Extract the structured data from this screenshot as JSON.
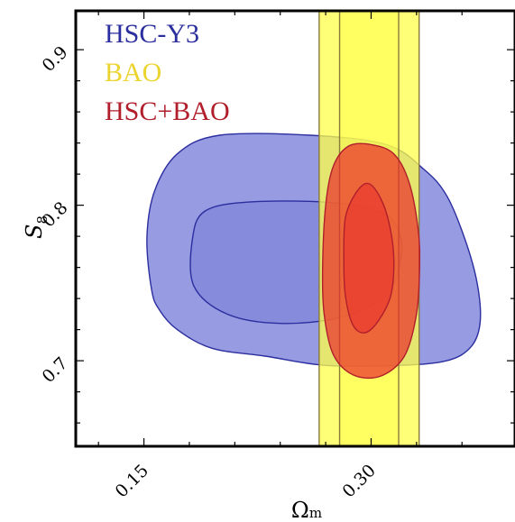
{
  "chart_data": {
    "type": "contour",
    "xlabel": {
      "main": "Ω",
      "sub": "m"
    },
    "ylabel": {
      "main": "S",
      "sub": "8"
    },
    "xlim": [
      0.105,
      0.395
    ],
    "ylim": [
      0.645,
      0.925
    ],
    "x_ticks": [
      {
        "value": 0.15,
        "label": "0.15"
      },
      {
        "value": 0.3,
        "label": "0.30"
      }
    ],
    "y_ticks": [
      {
        "value": 0.7,
        "label": "0.7"
      },
      {
        "value": 0.8,
        "label": "0.8"
      },
      {
        "value": 0.9,
        "label": "0.9"
      }
    ],
    "grid": false,
    "legend_position": "top-left",
    "series": [
      {
        "name": "HSC-Y3",
        "color": "#2b2e9e",
        "fill": "#6f75d6",
        "contours": [
          {
            "level": "95%",
            "points": [
              [
                0.155,
                0.746
              ],
              [
                0.152,
                0.779
              ],
              [
                0.157,
                0.809
              ],
              [
                0.172,
                0.833
              ],
              [
                0.2,
                0.845
              ],
              [
                0.26,
                0.845
              ],
              [
                0.31,
                0.839
              ],
              [
                0.335,
                0.823
              ],
              [
                0.35,
                0.806
              ],
              [
                0.362,
                0.778
              ],
              [
                0.37,
                0.75
              ],
              [
                0.372,
                0.725
              ],
              [
                0.366,
                0.709
              ],
              [
                0.35,
                0.7
              ],
              [
                0.318,
                0.697
              ],
              [
                0.27,
                0.697
              ],
              [
                0.23,
                0.703
              ],
              [
                0.195,
                0.708
              ],
              [
                0.172,
                0.72
              ],
              [
                0.16,
                0.733
              ]
            ]
          },
          {
            "level": "68%",
            "points": [
              [
                0.183,
                0.748
              ],
              [
                0.182,
                0.778
              ],
              [
                0.19,
                0.796
              ],
              [
                0.218,
                0.802
              ],
              [
                0.27,
                0.802
              ],
              [
                0.305,
                0.796
              ],
              [
                0.317,
                0.786
              ],
              [
                0.32,
                0.768
              ],
              [
                0.31,
                0.742
              ],
              [
                0.28,
                0.728
              ],
              [
                0.24,
                0.724
              ],
              [
                0.205,
                0.73
              ]
            ]
          }
        ]
      },
      {
        "name": "BAO",
        "color": "#8a7a3c",
        "fill": "#ffff4a",
        "contours": [
          {
            "level": "95%",
            "x_range": [
              0.2657,
              0.3317
            ]
          },
          {
            "level": "68%",
            "x_range": [
              0.2792,
              0.3182
            ]
          }
        ]
      },
      {
        "name": "HSC+BAO",
        "color": "#b01f2b",
        "fill": "#ea2b2b",
        "contours": [
          {
            "level": "95%",
            "points": [
              [
                0.268,
                0.76
              ],
              [
                0.27,
                0.8
              ],
              [
                0.275,
                0.825
              ],
              [
                0.285,
                0.838
              ],
              [
                0.3,
                0.839
              ],
              [
                0.315,
                0.833
              ],
              [
                0.325,
                0.815
              ],
              [
                0.331,
                0.785
              ],
              [
                0.332,
                0.76
              ],
              [
                0.33,
                0.73
              ],
              [
                0.322,
                0.703
              ],
              [
                0.306,
                0.69
              ],
              [
                0.288,
                0.691
              ],
              [
                0.275,
                0.704
              ],
              [
                0.269,
                0.73
              ]
            ]
          },
          {
            "level": "68%",
            "points": [
              [
                0.282,
                0.765
              ],
              [
                0.283,
                0.792
              ],
              [
                0.29,
                0.808
              ],
              [
                0.298,
                0.814
              ],
              [
                0.306,
                0.805
              ],
              [
                0.312,
                0.788
              ],
              [
                0.315,
                0.765
              ],
              [
                0.313,
                0.742
              ],
              [
                0.305,
                0.726
              ],
              [
                0.296,
                0.718
              ],
              [
                0.288,
                0.723
              ],
              [
                0.283,
                0.742
              ]
            ]
          }
        ]
      }
    ]
  }
}
